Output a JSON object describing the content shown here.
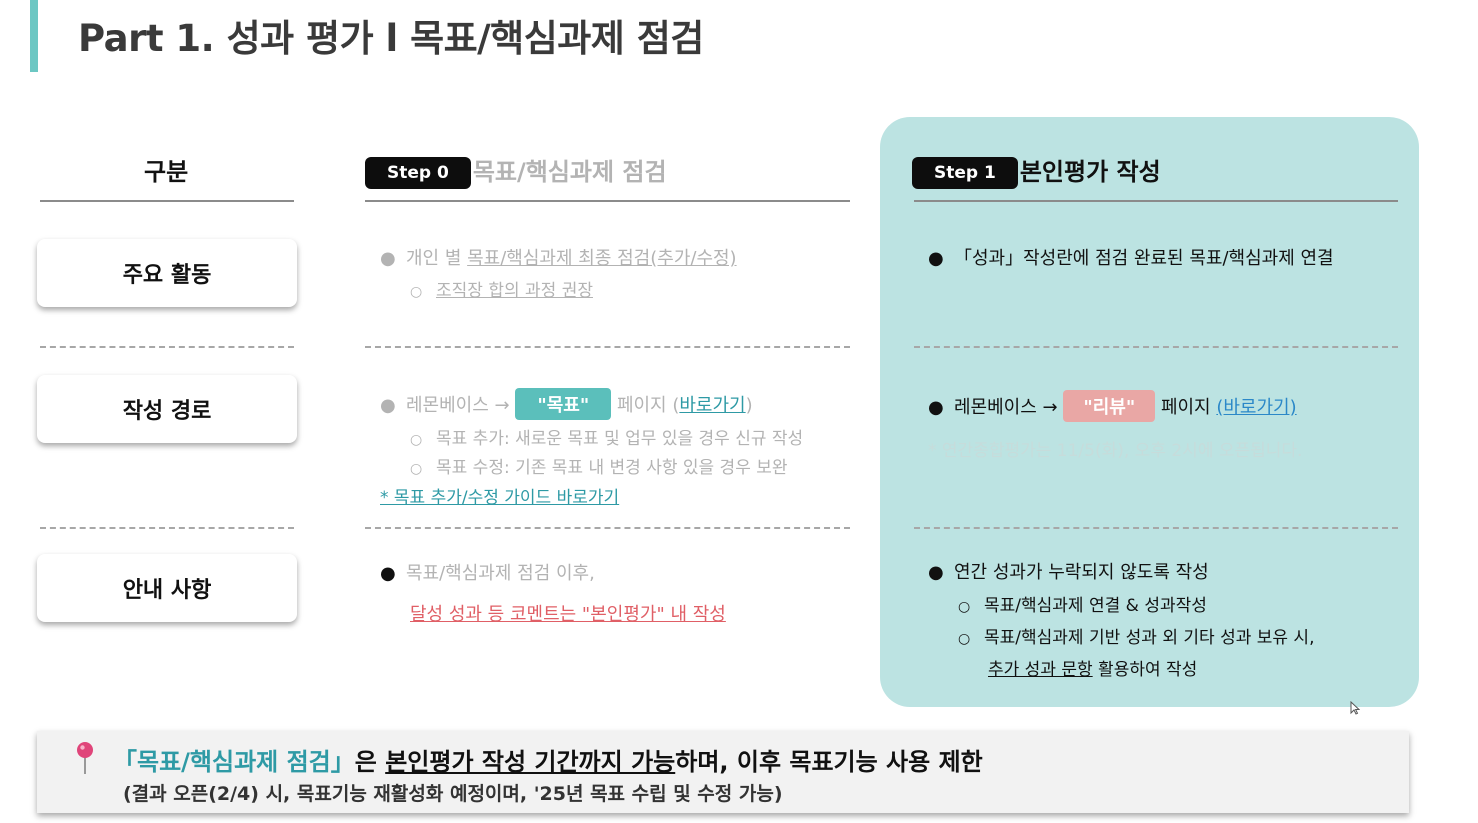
{
  "title": "Part 1. 성과 평가 l 목표/핵심과제 점검",
  "columns": {
    "category_header": "구분",
    "step0": {
      "badge": "Step 0",
      "title": "목표/핵심과제 점검"
    },
    "step1": {
      "badge": "Step 1",
      "title": "본인평가 작성"
    }
  },
  "rows": {
    "activities": "주요 활동",
    "path": "작성 경로",
    "notice": "안내 사항"
  },
  "step0": {
    "activities": {
      "prefix": "개인 별 ",
      "underlined": "목표/핵심과제 최종 점검(추가/수정)",
      "sub": "조직장 합의 과정 권장"
    },
    "path": {
      "prefix": "레몬베이스 → ",
      "chip": "\"목표\"",
      "mid": " 페이지 (",
      "link": "바로가기",
      "suffix": ")",
      "sub1": "목표 추가: 새로운 목표 및 업무 있을 경우 신규 작성",
      "sub2": "목표 수정: 기존 목표 내 변경 사항 있을 경우 보완",
      "guide_link": "* 목표 추가/수정 가이드 바로가기"
    },
    "notice": {
      "line1": "목표/핵심과제 점검 이후,",
      "line2": "달성 성과 등 코멘트는 \"본인평가\" 내 작성"
    }
  },
  "step1": {
    "activities": "「성과」작성란에 점검 완료된 목표/핵심과제 연결",
    "path": {
      "prefix": "레몬베이스 → ",
      "chip": "\"리뷰\"",
      "mid": " 페이지 ",
      "link": "(바로가기)",
      "note": "* 연간종합평가는 11/5(화), 오후 2시에 오픈됩니다."
    },
    "notice": {
      "line1": "연간 성과가 누락되지 않도록 작성",
      "sub1": "목표/핵심과제 연결 & 성과작성",
      "sub2": "목표/핵심과제 기반 성과 외 기타 성과 보유 시,",
      "sub3_u": "추가 성과 문항",
      "sub3_rest": " 활용하여 작성"
    }
  },
  "banner": {
    "quote": "「목표/핵심과제 점검」",
    "part1": "은 ",
    "underlined": "본인평가 작성 기간까지 가능",
    "part2": "하며, 이후 목표기능 사용 제한",
    "line2": "(결과 오픈(2/4) 시, 목표기능 재활성화 예정이며, '25년 목표 수립 및 수정 가능)"
  },
  "colors": {
    "accent": "#6cc7c3",
    "panel": "#bce3e2",
    "muted_text": "#b3b3b3",
    "chip_teal": "#5bbfbb",
    "chip_pink": "#e9a7a5",
    "link_red": "#e05f66",
    "link_blue": "#2b88c8",
    "pin": "#e0457a"
  }
}
